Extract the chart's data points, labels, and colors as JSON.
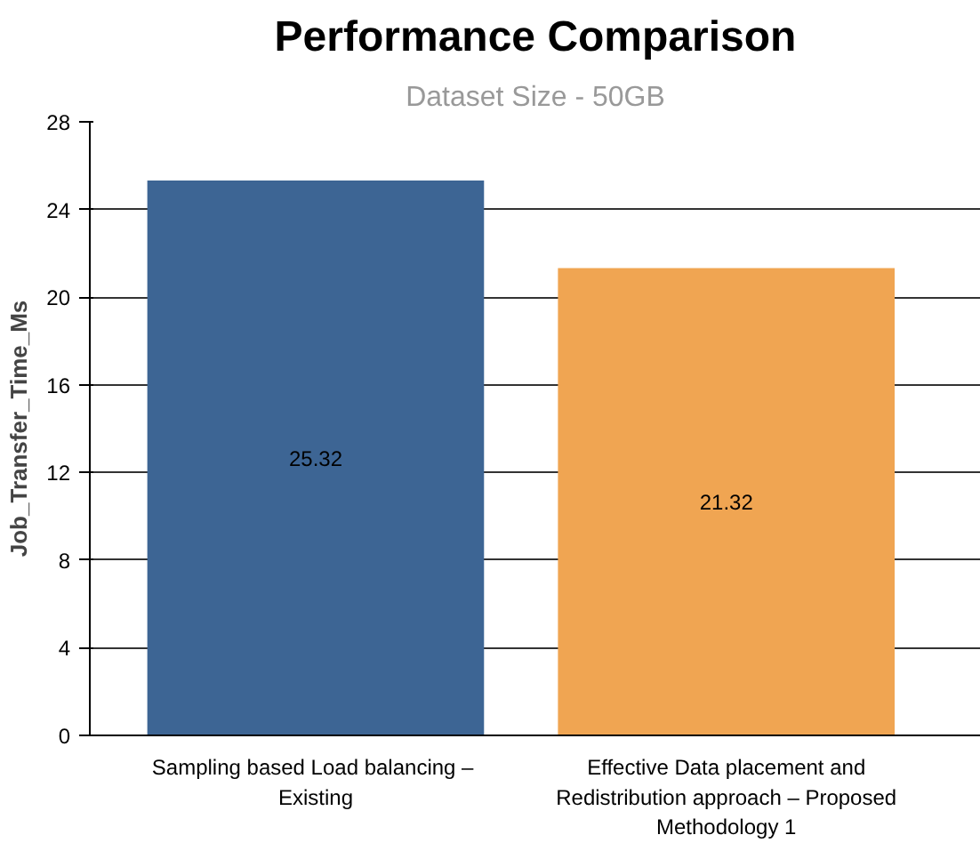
{
  "chart_data": {
    "type": "bar",
    "title": "Performance Comparison",
    "subtitle": "Dataset Size - 50GB",
    "ylabel": "Job_Transfer_Time_Ms",
    "categories": [
      "Sampling  based Load balancing – Existing",
      "Effective Data placement and Redistribution approach – Proposed Methodology 1"
    ],
    "values": [
      25.32,
      21.32
    ],
    "colors": [
      "#3d6594",
      "#f0a552"
    ],
    "ylim": [
      0,
      28
    ],
    "yticks": [
      0,
      4,
      8,
      12,
      16,
      20,
      24,
      28
    ],
    "grid": "y",
    "data_labels": true
  }
}
